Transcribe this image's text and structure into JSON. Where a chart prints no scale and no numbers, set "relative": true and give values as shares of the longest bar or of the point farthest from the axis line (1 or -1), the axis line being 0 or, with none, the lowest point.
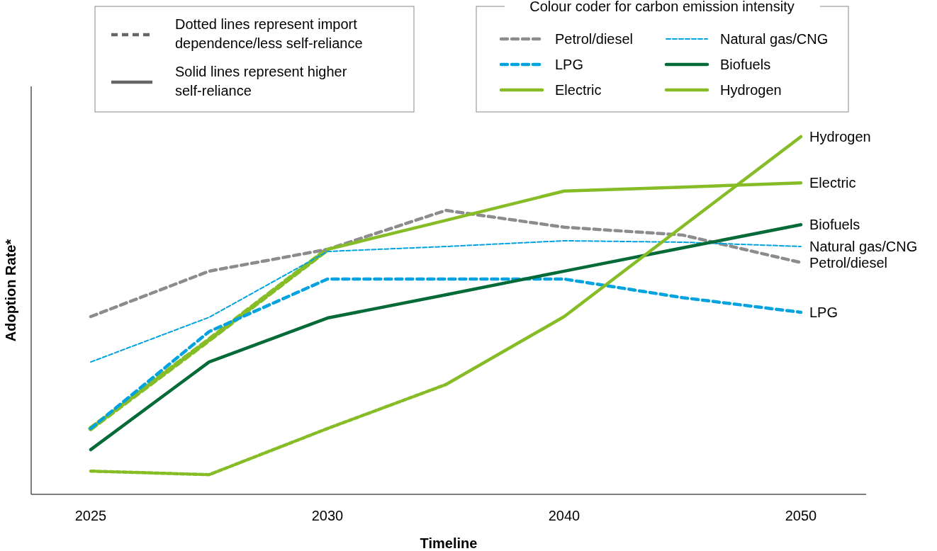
{
  "chart_data": {
    "type": "line",
    "relative": true,
    "xlabel": "Timeline",
    "ylabel": "Adoption Rate*",
    "categories": [
      "2025",
      null,
      "2030",
      null,
      "2040",
      null,
      "2050"
    ],
    "legend_title": "Colour coder for carbon emission intensity",
    "legend": "top right",
    "annotations": [
      "Dotted lines represent import dependence/less self-reliance",
      "Solid lines represent higher self-reliance"
    ],
    "series": [
      {
        "name": "Petrol/diesel",
        "color": "#8c8c8f",
        "line_style": "dashed",
        "values": [
          0.497,
          0.624,
          0.685,
          0.794,
          0.747,
          0.725,
          0.648
        ]
      },
      {
        "name": "Natural gas/CNG",
        "color": "#00a3e0",
        "line_style": "dotted",
        "values": [
          0.37,
          0.495,
          0.679,
          0.693,
          0.709,
          0.705,
          0.693
        ]
      },
      {
        "name": "LPG",
        "color": "#00a3e0",
        "line_style": "dashed",
        "values": [
          0.184,
          0.455,
          0.602,
          0.602,
          0.602,
          0.55,
          0.509
        ]
      },
      {
        "name": "Biofuels",
        "color": "#046a38",
        "line_style": "solid",
        "values": [
          0.125,
          0.37,
          0.493,
          0.558,
          0.624,
          0.689,
          0.754
        ]
      },
      {
        "name": "Electric",
        "color": "#86bc25",
        "line_style": "solid",
        "values": [
          null,
          null,
          0.685,
          0.766,
          0.848,
          0.859,
          0.871
        ]
      },
      {
        "name": "Hydrogen",
        "color": "#86bc25",
        "line_style": "solid",
        "values": [
          null,
          null,
          null,
          0.307,
          0.497,
          0.749,
          1
        ]
      },
      {
        "color": "#86bc25",
        "line_style": "dashed",
        "values": [
          0.184,
          0.432,
          0.685,
          null,
          null,
          null,
          null
        ]
      },
      {
        "color": "#86bc25",
        "line_style": "dotted",
        "values": [
          0.065,
          0.055,
          0.184,
          0.307,
          null,
          null,
          null
        ]
      }
    ]
  }
}
